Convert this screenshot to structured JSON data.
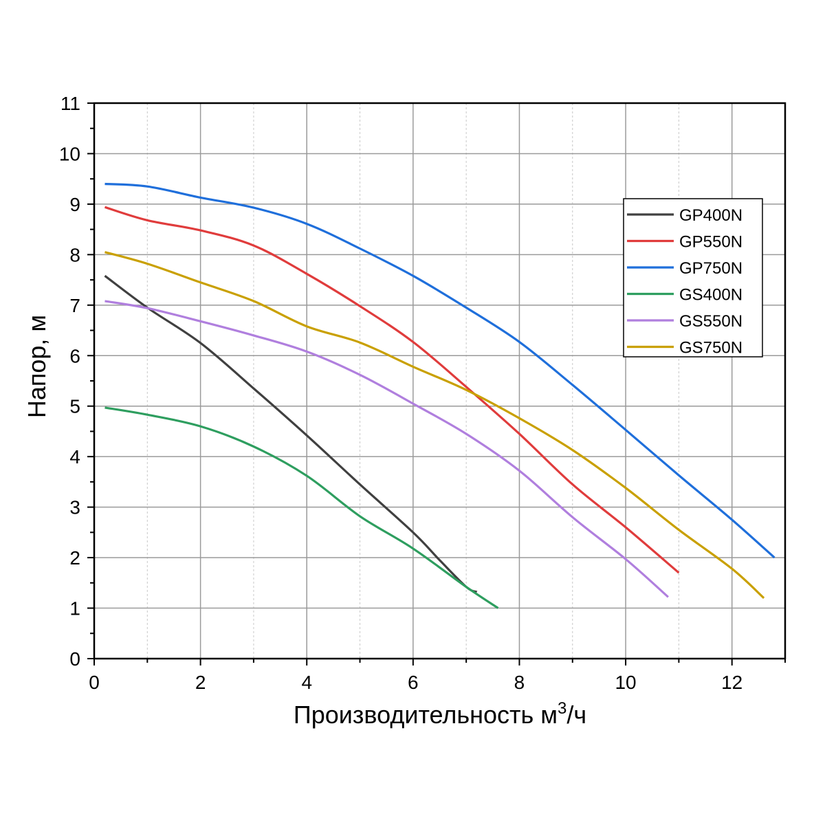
{
  "chart_data": {
    "type": "line",
    "xlabel": "Производительность м",
    "xlabel_sup": "3",
    "xlabel_tail": "/ч",
    "ylabel": "Напор, м",
    "xlim": [
      0,
      13
    ],
    "ylim": [
      0,
      11
    ],
    "xticks": [
      0,
      2,
      4,
      6,
      8,
      10,
      12
    ],
    "yticks": [
      0,
      1,
      2,
      3,
      4,
      5,
      6,
      7,
      8,
      9,
      10,
      11
    ],
    "grid": true,
    "legend_position": "top-right",
    "series": [
      {
        "name": "GP400N",
        "color": "#404040",
        "points": [
          [
            0.2,
            7.58
          ],
          [
            1.0,
            6.95
          ],
          [
            2.0,
            6.25
          ],
          [
            3.0,
            5.35
          ],
          [
            4.0,
            4.42
          ],
          [
            5.0,
            3.45
          ],
          [
            6.0,
            2.5
          ],
          [
            6.5,
            1.95
          ],
          [
            7.0,
            1.42
          ],
          [
            7.2,
            1.32
          ]
        ]
      },
      {
        "name": "GP550N",
        "color": "#e03c3c",
        "points": [
          [
            0.2,
            8.94
          ],
          [
            1.0,
            8.68
          ],
          [
            2.0,
            8.48
          ],
          [
            3.0,
            8.18
          ],
          [
            4.0,
            7.62
          ],
          [
            5.0,
            6.98
          ],
          [
            6.0,
            6.27
          ],
          [
            7.0,
            5.38
          ],
          [
            8.0,
            4.45
          ],
          [
            9.0,
            3.45
          ],
          [
            10.0,
            2.6
          ],
          [
            11.0,
            1.7
          ]
        ]
      },
      {
        "name": "GP750N",
        "color": "#1f6fdb",
        "points": [
          [
            0.2,
            9.4
          ],
          [
            1.0,
            9.35
          ],
          [
            2.0,
            9.13
          ],
          [
            3.0,
            8.93
          ],
          [
            4.0,
            8.61
          ],
          [
            5.0,
            8.12
          ],
          [
            6.0,
            7.58
          ],
          [
            7.0,
            6.95
          ],
          [
            8.0,
            6.27
          ],
          [
            9.0,
            5.42
          ],
          [
            10.0,
            4.53
          ],
          [
            11.0,
            3.63
          ],
          [
            12.0,
            2.75
          ],
          [
            12.8,
            2.0
          ]
        ]
      },
      {
        "name": "GS400N",
        "color": "#2e9e5f",
        "points": [
          [
            0.2,
            4.97
          ],
          [
            1.0,
            4.83
          ],
          [
            2.0,
            4.6
          ],
          [
            3.0,
            4.2
          ],
          [
            4.0,
            3.62
          ],
          [
            5.0,
            2.82
          ],
          [
            6.0,
            2.18
          ],
          [
            7.0,
            1.42
          ],
          [
            7.6,
            1.0
          ]
        ]
      },
      {
        "name": "GS550N",
        "color": "#b07fde",
        "points": [
          [
            0.2,
            7.08
          ],
          [
            1.0,
            6.94
          ],
          [
            2.0,
            6.68
          ],
          [
            3.0,
            6.4
          ],
          [
            4.0,
            6.08
          ],
          [
            5.0,
            5.62
          ],
          [
            6.0,
            5.05
          ],
          [
            7.0,
            4.45
          ],
          [
            8.0,
            3.72
          ],
          [
            9.0,
            2.8
          ],
          [
            10.0,
            1.97
          ],
          [
            10.8,
            1.22
          ]
        ]
      },
      {
        "name": "GS750N",
        "color": "#c9a000",
        "points": [
          [
            0.2,
            8.05
          ],
          [
            1.0,
            7.82
          ],
          [
            2.0,
            7.45
          ],
          [
            3.0,
            7.08
          ],
          [
            4.0,
            6.58
          ],
          [
            5.0,
            6.26
          ],
          [
            6.0,
            5.78
          ],
          [
            7.0,
            5.32
          ],
          [
            8.0,
            4.76
          ],
          [
            9.0,
            4.13
          ],
          [
            10.0,
            3.38
          ],
          [
            11.0,
            2.55
          ],
          [
            12.0,
            1.78
          ],
          [
            12.6,
            1.2
          ]
        ]
      }
    ]
  }
}
